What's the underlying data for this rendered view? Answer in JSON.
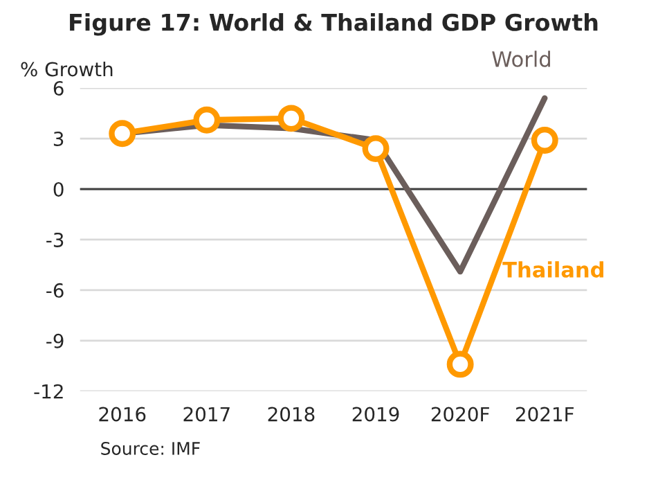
{
  "chart_data": {
    "type": "line",
    "title": "Figure 17: World & Thailand GDP Growth",
    "ylabel": "% Growth",
    "categories": [
      "2016",
      "2017",
      "2018",
      "2019",
      "2020F",
      "2021F"
    ],
    "series": [
      {
        "name": "World",
        "color": "#6b5e5b",
        "values": [
          3.3,
          3.8,
          3.6,
          2.9,
          -4.9,
          5.4
        ],
        "marker": "none"
      },
      {
        "name": "Thailand",
        "color": "#ff9900",
        "values": [
          3.3,
          4.1,
          4.2,
          2.4,
          -10.4,
          2.9
        ],
        "marker": "circle"
      }
    ],
    "ylim": [
      -12,
      6
    ],
    "yticks": [
      -12,
      -9,
      -6,
      -3,
      0,
      3,
      6
    ],
    "grid": "y",
    "legend": false,
    "ref_lines": [
      {
        "axis": "y",
        "value": 0,
        "color": "#404040"
      }
    ],
    "annotations": [
      "Source: IMF"
    ]
  }
}
